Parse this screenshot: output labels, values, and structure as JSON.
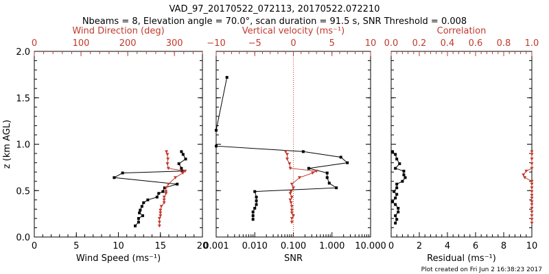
{
  "title_line1": "VAD_97_20170522_072113, 20170522.072210",
  "title_line2": "Nbeams = 8, Elevation angle = 70.0°, scan duration = 91.5 s, SNR Threshold = 0.008",
  "footer": "Plot created on Fri Jun  2 16:38:23 2017",
  "colors": {
    "red": "#c0392b",
    "black": "#000000"
  },
  "chart_data": [
    {
      "type": "line",
      "xlabel": "Wind Speed (ms⁻¹)",
      "x2label": "Wind Direction (deg)",
      "ylabel": "z (km AGL)",
      "xlim": [
        0,
        20
      ],
      "x2lim": [
        0,
        360
      ],
      "ylim": [
        0,
        2.0
      ],
      "xticks": [
        "0",
        "5",
        "10",
        "15",
        "20"
      ],
      "x2ticks": [
        "0",
        "100",
        "200",
        "300"
      ],
      "yticks": [
        "0.0",
        "0.5",
        "1.0",
        "1.5",
        "2.0"
      ],
      "series": [
        {
          "axis": "bottom",
          "color": "#000000",
          "points": [
            [
              17.5,
              0.92
            ],
            [
              17.7,
              0.89
            ],
            [
              18.0,
              0.84
            ],
            [
              17.2,
              0.79
            ],
            [
              17.5,
              0.74
            ],
            [
              17.6,
              0.71
            ],
            [
              10.5,
              0.69
            ],
            [
              9.5,
              0.64
            ],
            [
              17.0,
              0.57
            ],
            [
              15.5,
              0.53
            ],
            [
              15.3,
              0.49
            ],
            [
              14.8,
              0.47
            ],
            [
              14.6,
              0.43
            ],
            [
              13.5,
              0.4
            ],
            [
              13.0,
              0.37
            ],
            [
              12.8,
              0.33
            ],
            [
              12.6,
              0.29
            ],
            [
              12.5,
              0.26
            ],
            [
              12.9,
              0.23
            ],
            [
              12.4,
              0.2
            ],
            [
              12.4,
              0.16
            ],
            [
              12.0,
              0.12
            ]
          ]
        },
        {
          "axis": "top",
          "color": "#c0392b",
          "points": [
            [
              283,
              0.92
            ],
            [
              285,
              0.89
            ],
            [
              286,
              0.84
            ],
            [
              285,
              0.79
            ],
            [
              287,
              0.74
            ],
            [
              323,
              0.71
            ],
            [
              318,
              0.69
            ],
            [
              302,
              0.64
            ],
            [
              287,
              0.57
            ],
            [
              282,
              0.53
            ],
            [
              282,
              0.49
            ],
            [
              282,
              0.47
            ],
            [
              278,
              0.43
            ],
            [
              278,
              0.4
            ],
            [
              278,
              0.37
            ],
            [
              272,
              0.33
            ],
            [
              270,
              0.29
            ],
            [
              270,
              0.26
            ],
            [
              270,
              0.23
            ],
            [
              268,
              0.2
            ],
            [
              268,
              0.16
            ],
            [
              268,
              0.12
            ]
          ]
        }
      ]
    },
    {
      "type": "line",
      "xlabel": "SNR",
      "x2label": "Vertical velocity (ms⁻¹)",
      "xscale": "log",
      "xlim": [
        0.001,
        10.0
      ],
      "x2lim": [
        -10,
        10
      ],
      "ylim": [
        0,
        2.0
      ],
      "xticks": [
        "0.001",
        "0.010",
        "0.100",
        "1.000",
        "10.000"
      ],
      "x2ticks": [
        "−10",
        "−5",
        "0",
        "5",
        "10"
      ],
      "series": [
        {
          "axis": "bottom",
          "color": "#000000",
          "points": [
            [
              0.0019,
              1.72
            ],
            [
              0.001,
              1.15
            ],
            [
              0.001,
              0.98
            ],
            [
              0.18,
              0.92
            ],
            [
              1.7,
              0.86
            ],
            [
              2.5,
              0.8
            ],
            [
              0.25,
              0.74
            ],
            [
              0.75,
              0.69
            ],
            [
              0.75,
              0.64
            ],
            [
              0.85,
              0.58
            ],
            [
              1.3,
              0.53
            ],
            [
              0.01,
              0.49
            ],
            [
              0.011,
              0.43
            ],
            [
              0.011,
              0.39
            ],
            [
              0.011,
              0.35
            ],
            [
              0.01,
              0.31
            ],
            [
              0.009,
              0.27
            ],
            [
              0.009,
              0.23
            ],
            [
              0.009,
              0.19
            ]
          ]
        },
        {
          "axis": "top",
          "color": "#c0392b",
          "points": [
            [
              -1.0,
              0.92
            ],
            [
              -0.8,
              0.89
            ],
            [
              -0.8,
              0.84
            ],
            [
              -0.5,
              0.79
            ],
            [
              -0.4,
              0.74
            ],
            [
              3.0,
              0.71
            ],
            [
              2.5,
              0.69
            ],
            [
              0.8,
              0.64
            ],
            [
              -0.2,
              0.57
            ],
            [
              0.0,
              0.53
            ],
            [
              -0.3,
              0.49
            ],
            [
              -0.4,
              0.47
            ],
            [
              -0.2,
              0.43
            ],
            [
              -0.4,
              0.4
            ],
            [
              -0.3,
              0.37
            ],
            [
              -0.2,
              0.33
            ],
            [
              -0.2,
              0.29
            ],
            [
              -0.2,
              0.26
            ],
            [
              0.0,
              0.23
            ],
            [
              -0.2,
              0.2
            ],
            [
              -0.2,
              0.16
            ]
          ]
        }
      ]
    },
    {
      "type": "line",
      "xlabel": "Residual (ms⁻¹)",
      "x2label": "Correlation",
      "xlim": [
        0,
        10
      ],
      "x2lim": [
        0,
        1.0
      ],
      "ylim": [
        0,
        2.0
      ],
      "xticks": [
        "0",
        "2",
        "4",
        "6",
        "8",
        "10"
      ],
      "x2ticks": [
        "0.0",
        "0.2",
        "0.4",
        "0.6",
        "0.8",
        "1.0"
      ],
      "series": [
        {
          "axis": "bottom",
          "color": "#000000",
          "points": [
            [
              0.1,
              0.92
            ],
            [
              0.3,
              0.89
            ],
            [
              0.4,
              0.84
            ],
            [
              0.6,
              0.79
            ],
            [
              0.3,
              0.74
            ],
            [
              0.9,
              0.71
            ],
            [
              0.9,
              0.67
            ],
            [
              1.0,
              0.64
            ],
            [
              0.8,
              0.6
            ],
            [
              0.4,
              0.57
            ],
            [
              0.4,
              0.53
            ],
            [
              0.2,
              0.49
            ],
            [
              0.4,
              0.46
            ],
            [
              0.3,
              0.42
            ],
            [
              0.1,
              0.38
            ],
            [
              0.3,
              0.35
            ],
            [
              0.5,
              0.31
            ],
            [
              0.5,
              0.27
            ],
            [
              0.3,
              0.23
            ],
            [
              0.4,
              0.19
            ],
            [
              0.3,
              0.15
            ]
          ]
        },
        {
          "axis": "top",
          "color": "#c0392b",
          "points": [
            [
              1.0,
              0.92
            ],
            [
              1.0,
              0.89
            ],
            [
              1.0,
              0.84
            ],
            [
              1.0,
              0.79
            ],
            [
              1.0,
              0.74
            ],
            [
              0.96,
              0.71
            ],
            [
              0.94,
              0.67
            ],
            [
              0.95,
              0.64
            ],
            [
              1.0,
              0.6
            ],
            [
              1.0,
              0.57
            ],
            [
              1.0,
              0.53
            ],
            [
              1.0,
              0.49
            ],
            [
              1.0,
              0.45
            ],
            [
              1.0,
              0.42
            ],
            [
              1.0,
              0.38
            ],
            [
              1.0,
              0.35
            ],
            [
              1.0,
              0.31
            ],
            [
              1.0,
              0.27
            ],
            [
              1.0,
              0.23
            ],
            [
              1.0,
              0.19
            ],
            [
              1.0,
              0.15
            ]
          ]
        }
      ]
    }
  ]
}
